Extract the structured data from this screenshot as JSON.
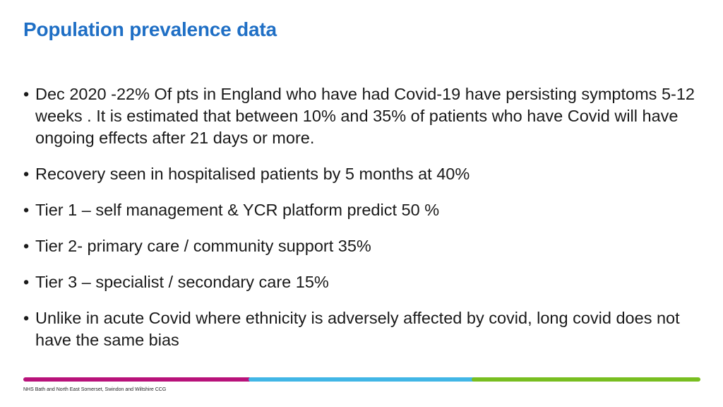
{
  "slide": {
    "title": "Population prevalence data",
    "bullet_symbol": "•",
    "bullets": [
      "Dec 2020 -22% Of pts in England who have had Covid-19 have persisting symptoms 5-12 weeks . It is estimated that between 10% and 35% of patients who have Covid will have ongoing effects after 21 days or more.",
      "Recovery seen in hospitalised patients by 5 months at 40%",
      "Tier 1 – self management & YCR platform  predict 50 %",
      "Tier 2- primary care / community support  35%",
      "Tier 3 – specialist / secondary care 15%",
      "Unlike in acute Covid where ethnicity is adversely affected by covid, long covid does not have the same bias"
    ]
  },
  "footer": {
    "org_text": "NHS Bath and North East Somerset, Swindon and Wiltshire CCG",
    "bar_colors": [
      "#b8127a",
      "#41b6e6",
      "#78be20"
    ]
  },
  "colors": {
    "title": "#1f6fc5",
    "body_text": "#1a1a1a"
  }
}
